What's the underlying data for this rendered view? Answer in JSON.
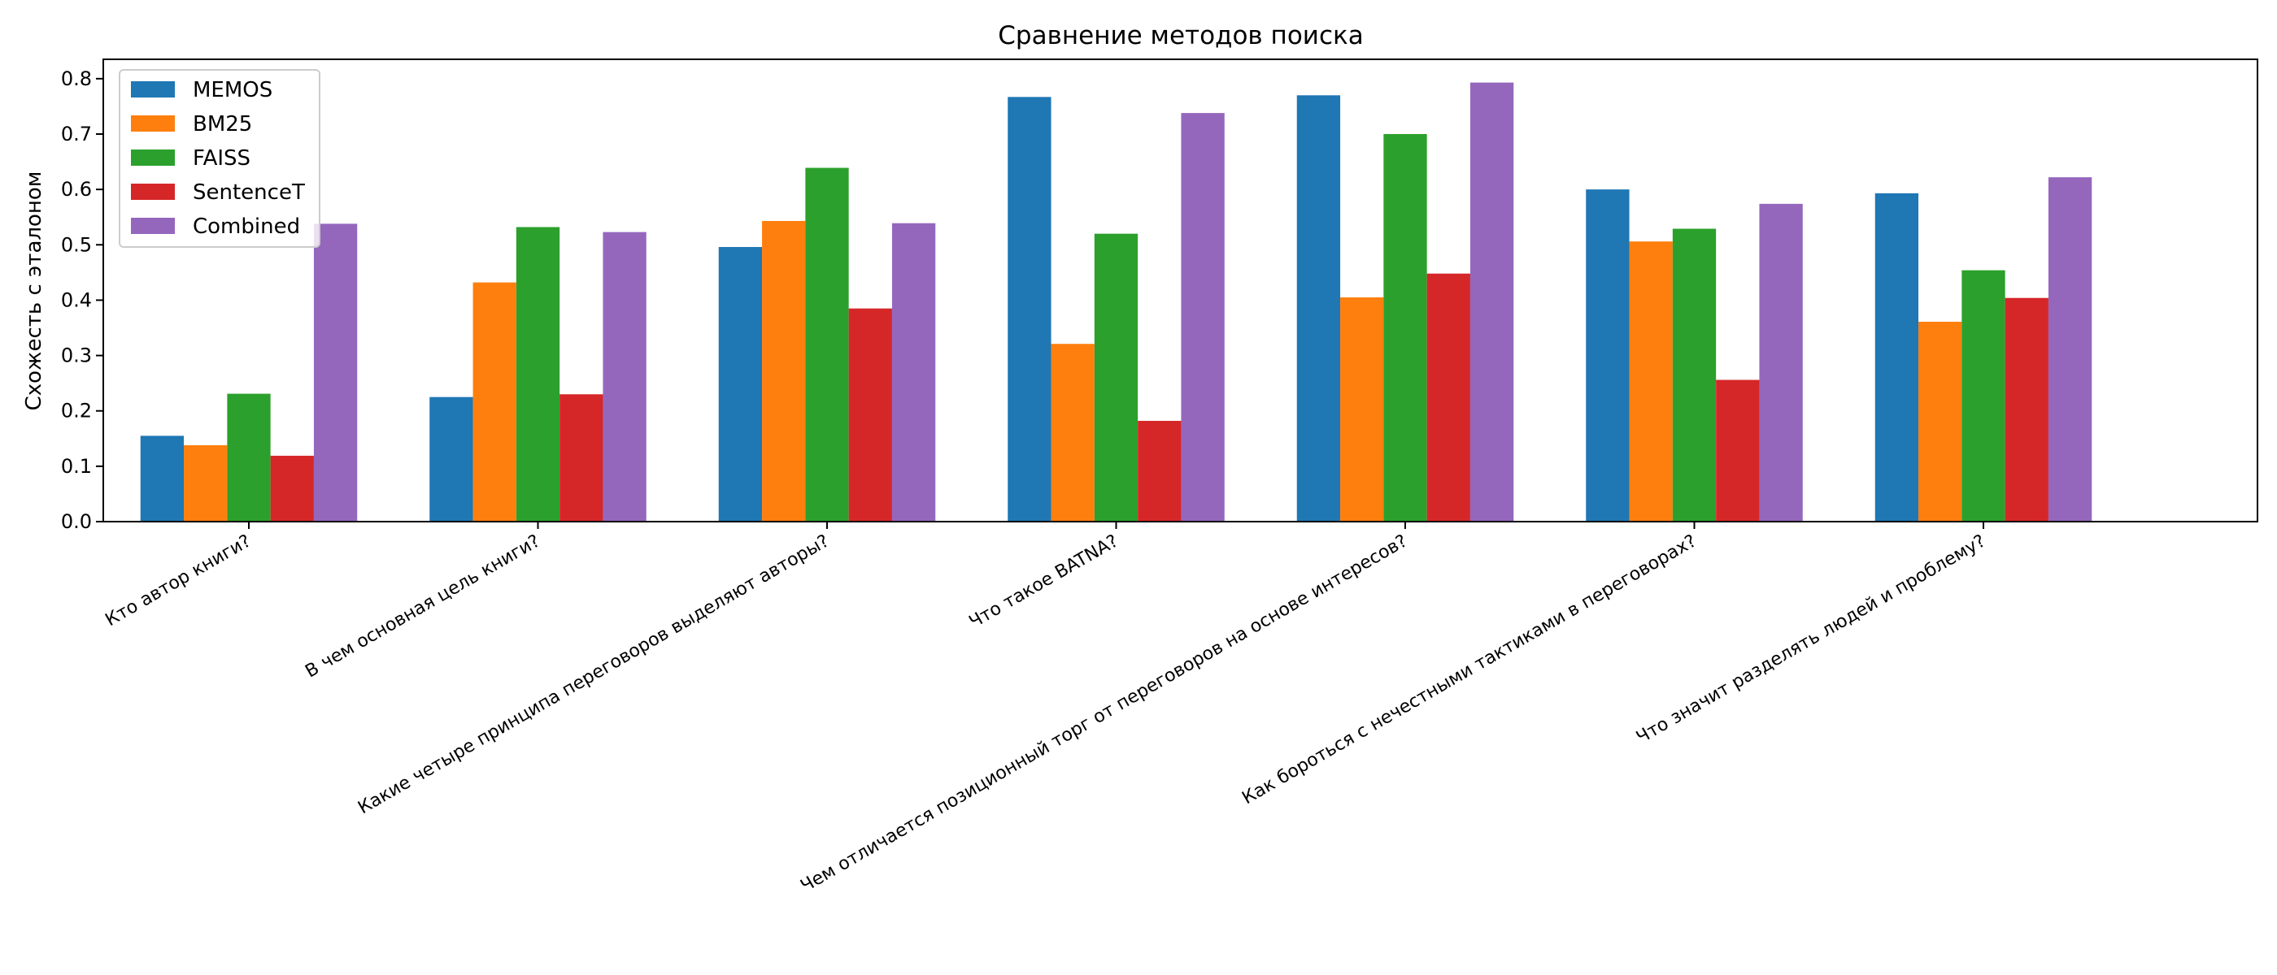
{
  "chart_data": {
    "type": "bar",
    "title": "Сравнение методов поиска",
    "xlabel": "",
    "ylabel": "Схожесть с эталоном",
    "ylim": [
      0,
      0.835
    ],
    "yticks": [
      "0.0",
      "0.1",
      "0.2",
      "0.3",
      "0.4",
      "0.5",
      "0.6",
      "0.7",
      "0.8"
    ],
    "categories": [
      "Кто автор книги?",
      "В чем основная цель книги?",
      "Какие четыре принципа переговоров выделяют авторы?",
      "Что такое BATNA?",
      "Чем отличается позиционный торг от переговоров на основе интересов?",
      "Как бороться с нечестными тактиками в переговорах?",
      "Что значит разделять людей и проблему?"
    ],
    "series": [
      {
        "name": "MEMOS",
        "color": "#1f77b4",
        "values": [
          0.155,
          0.225,
          0.496,
          0.767,
          0.77,
          0.6,
          0.593
        ]
      },
      {
        "name": "BM25",
        "color": "#ff7f0e",
        "values": [
          0.138,
          0.432,
          0.543,
          0.321,
          0.405,
          0.506,
          0.361
        ]
      },
      {
        "name": "FAISS",
        "color": "#2ca02c",
        "values": [
          0.231,
          0.532,
          0.639,
          0.52,
          0.7,
          0.529,
          0.454
        ]
      },
      {
        "name": "SentenceT",
        "color": "#d62728",
        "values": [
          0.119,
          0.23,
          0.385,
          0.182,
          0.448,
          0.256,
          0.404
        ]
      },
      {
        "name": "Combined",
        "color": "#9467bd",
        "values": [
          0.538,
          0.523,
          0.539,
          0.738,
          0.793,
          0.574,
          0.622
        ]
      }
    ],
    "legend_position": "top-left",
    "grid": false
  }
}
